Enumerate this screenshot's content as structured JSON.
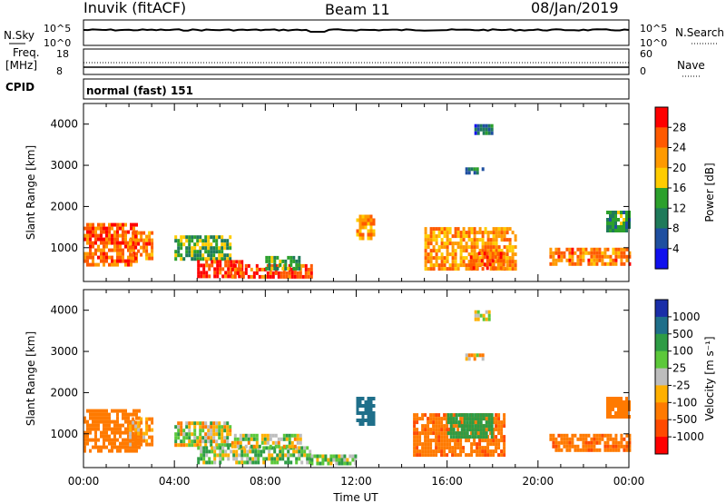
{
  "header": {
    "station": "Inuvik (fitACF)",
    "beam": "Beam 11",
    "date": "08/Jan/2019"
  },
  "top_panel": {
    "left_label": "N.Sky",
    "right_label": "N.Search",
    "left_ticks": [
      "10^5",
      "10^0"
    ],
    "right_ticks": [
      "10^5",
      "10^0"
    ]
  },
  "freq_panel": {
    "left_label_1": "Freq.",
    "left_label_2": "[MHz]",
    "right_label": "Nave",
    "left_ticks": [
      "18",
      "8"
    ],
    "right_ticks": [
      "60",
      "0"
    ]
  },
  "cpid": {
    "label": "CPID",
    "text": "normal (fast) 151"
  },
  "power_scale": {
    "title": "Power [dB]",
    "ticks": [
      "28",
      "24",
      "20",
      "16",
      "12",
      "8",
      "4"
    ],
    "colors": [
      "#ff0000",
      "#ff5a00",
      "#ff9a00",
      "#ffcc00",
      "#2ca02c",
      "#1f7a5a",
      "#1f4fa0",
      "#1010ee"
    ]
  },
  "velocity_scale": {
    "title": "Velocity [m s⁻¹]",
    "ticks": [
      "1000",
      "500",
      "100",
      "25",
      "-25",
      "-100",
      "-500",
      "-1000"
    ],
    "colors": [
      "#1a2ea8",
      "#1f6f8a",
      "#2e9c45",
      "#5cc83a",
      "#bdbdbd",
      "#ffb000",
      "#ff7a00",
      "#ff4a00",
      "#ff0000"
    ]
  },
  "chart_data": [
    {
      "type": "heatmap",
      "title": "Power",
      "ylabel": "Slant Range [km]",
      "xlabel": "Time UT",
      "y_ticks": [
        1000,
        2000,
        3000,
        4000
      ],
      "x_ticks": [
        "00:00",
        "04:00",
        "08:00",
        "12:00",
        "16:00",
        "20:00",
        "00:00"
      ],
      "y_range": [
        180,
        4500
      ],
      "x_range_hours": [
        0,
        24
      ],
      "regions": [
        {
          "t": [
            0.0,
            2.3
          ],
          "r": [
            600,
            1600
          ],
          "v": 26
        },
        {
          "t": [
            2.0,
            3.0
          ],
          "r": [
            700,
            1400
          ],
          "v": 24
        },
        {
          "t": [
            4.0,
            6.5
          ],
          "r": [
            700,
            1300
          ],
          "v": 14
        },
        {
          "t": [
            5.0,
            7.0
          ],
          "r": [
            300,
            700
          ],
          "v": 28
        },
        {
          "t": [
            6.5,
            10.0
          ],
          "r": [
            250,
            600
          ],
          "v": 27
        },
        {
          "t": [
            8.0,
            9.5
          ],
          "r": [
            500,
            800
          ],
          "v": 14
        },
        {
          "t": [
            12.0,
            12.8
          ],
          "r": [
            1200,
            1800
          ],
          "v": 22
        },
        {
          "t": [
            15.0,
            19.0
          ],
          "r": [
            500,
            1500
          ],
          "v": 22
        },
        {
          "t": [
            17.0,
            18.5
          ],
          "r": [
            500,
            900
          ],
          "v": 25
        },
        {
          "t": [
            20.5,
            24.0
          ],
          "r": [
            600,
            1000
          ],
          "v": 24
        },
        {
          "t": [
            23.0,
            24.0
          ],
          "r": [
            1400,
            1900
          ],
          "v": 12
        },
        {
          "t": [
            17.2,
            18.0
          ],
          "r": [
            3800,
            4000
          ],
          "v": 8
        },
        {
          "t": [
            16.8,
            17.6
          ],
          "r": [
            2800,
            2950
          ],
          "v": 10
        }
      ]
    },
    {
      "type": "heatmap",
      "title": "Velocity",
      "ylabel": "Slant Range [km]",
      "xlabel": "Time UT",
      "y_ticks": [
        1000,
        2000,
        3000,
        4000
      ],
      "x_ticks": [
        "00:00",
        "04:00",
        "08:00",
        "12:00",
        "16:00",
        "20:00",
        "00:00"
      ],
      "y_range": [
        180,
        4500
      ],
      "x_range_hours": [
        0,
        24
      ],
      "regions": [
        {
          "t": [
            0.0,
            2.5
          ],
          "r": [
            600,
            1600
          ],
          "v": -300
        },
        {
          "t": [
            2.0,
            3.0
          ],
          "r": [
            700,
            1400
          ],
          "v": -150
        },
        {
          "t": [
            4.0,
            6.5
          ],
          "r": [
            700,
            1300
          ],
          "v": 0
        },
        {
          "t": [
            5.0,
            10.0
          ],
          "r": [
            300,
            700
          ],
          "v": 60
        },
        {
          "t": [
            6.5,
            9.5
          ],
          "r": [
            700,
            1000
          ],
          "v": 0
        },
        {
          "t": [
            10.0,
            12.0
          ],
          "r": [
            250,
            500
          ],
          "v": 80
        },
        {
          "t": [
            12.0,
            12.8
          ],
          "r": [
            1200,
            1900
          ],
          "v": 700
        },
        {
          "t": [
            14.5,
            18.5
          ],
          "r": [
            500,
            1500
          ],
          "v": -400
        },
        {
          "t": [
            16.0,
            18.0
          ],
          "r": [
            900,
            1500
          ],
          "v": 300
        },
        {
          "t": [
            20.5,
            24.0
          ],
          "r": [
            600,
            1000
          ],
          "v": -400
        },
        {
          "t": [
            23.0,
            24.0
          ],
          "r": [
            1400,
            1900
          ],
          "v": -300
        },
        {
          "t": [
            17.2,
            18.0
          ],
          "r": [
            3800,
            4000
          ],
          "v": 50
        },
        {
          "t": [
            16.8,
            17.6
          ],
          "r": [
            2800,
            2950
          ],
          "v": -100
        }
      ]
    }
  ]
}
